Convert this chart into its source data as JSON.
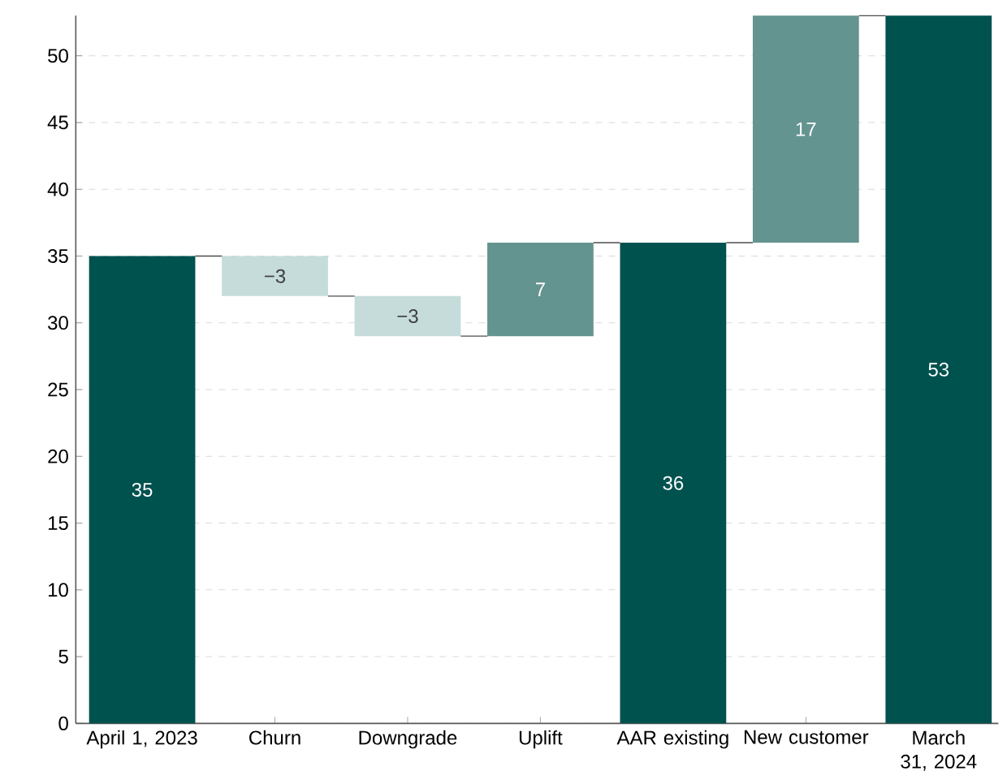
{
  "chart_data": {
    "type": "bar",
    "categories": [
      "April 1, 2023",
      "Churn",
      "Downgrade",
      "Uplift",
      "AAR existing",
      "New customer",
      "March 31, 2024"
    ],
    "values": [
      35,
      -3,
      -3,
      7,
      36,
      17,
      53
    ],
    "base": [
      0,
      35,
      32,
      29,
      0,
      36,
      0
    ],
    "colors": [
      "#00524f",
      "#c5dcdb",
      "#c5dcdb",
      "#64948f",
      "#00524f",
      "#64948f",
      "#00524f"
    ],
    "value_labels": [
      "35",
      "−3",
      "−3",
      "7",
      "36",
      "17",
      "53"
    ],
    "ylim": [
      0,
      53
    ],
    "yticks": [
      0,
      5,
      10,
      15,
      20,
      25,
      30,
      35,
      40,
      45,
      50
    ],
    "grid": "y"
  }
}
